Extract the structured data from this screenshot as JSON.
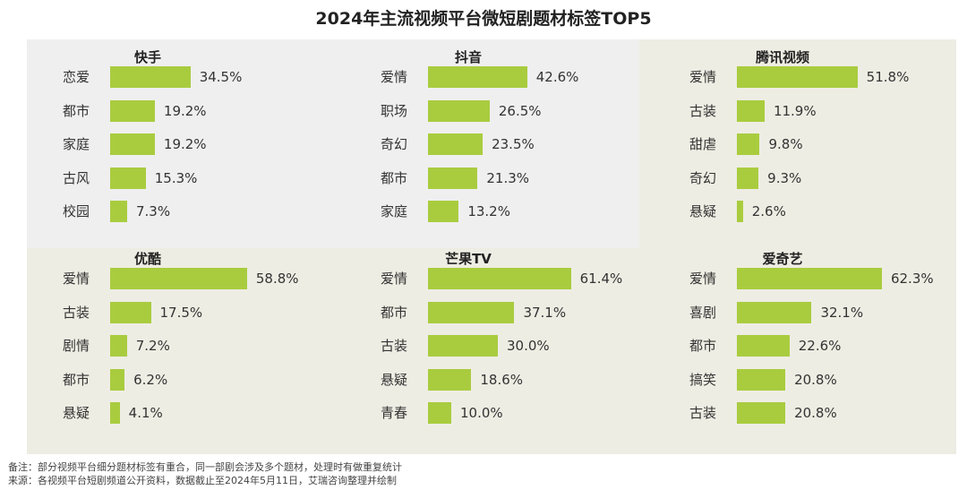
{
  "title": "2024年主流视频平台微短剧题材标签TOP5",
  "colors": {
    "bar": "#a9cc3f",
    "panel_gray": "#efefef",
    "panel_beige": "#eeede3"
  },
  "chart_data": [
    {
      "type": "bar",
      "title": "快手",
      "categories": [
        "恋爱",
        "都市",
        "家庭",
        "古风",
        "校园"
      ],
      "values": [
        34.5,
        19.2,
        19.2,
        15.3,
        7.3
      ],
      "labels": [
        "34.5%",
        "19.2%",
        "19.2%",
        "15.3%",
        "7.3%"
      ],
      "orientation": "horizontal"
    },
    {
      "type": "bar",
      "title": "抖音",
      "categories": [
        "爱情",
        "职场",
        "奇幻",
        "都市",
        "家庭"
      ],
      "values": [
        42.6,
        26.5,
        23.5,
        21.3,
        13.2
      ],
      "labels": [
        "42.6%",
        "26.5%",
        "23.5%",
        "21.3%",
        "13.2%"
      ],
      "orientation": "horizontal"
    },
    {
      "type": "bar",
      "title": "腾讯视频",
      "categories": [
        "爱情",
        "古装",
        "甜虐",
        "奇幻",
        "悬疑"
      ],
      "values": [
        51.8,
        11.9,
        9.8,
        9.3,
        2.6
      ],
      "labels": [
        "51.8%",
        "11.9%",
        "9.8%",
        "9.3%",
        "2.6%"
      ],
      "orientation": "horizontal"
    },
    {
      "type": "bar",
      "title": "优酷",
      "categories": [
        "爱情",
        "古装",
        "剧情",
        "都市",
        "悬疑"
      ],
      "values": [
        58.8,
        17.5,
        7.2,
        6.2,
        4.1
      ],
      "labels": [
        "58.8%",
        "17.5%",
        "7.2%",
        "6.2%",
        "4.1%"
      ],
      "orientation": "horizontal"
    },
    {
      "type": "bar",
      "title": "芒果TV",
      "categories": [
        "爱情",
        "都市",
        "古装",
        "悬疑",
        "青春"
      ],
      "values": [
        61.4,
        37.1,
        30.0,
        18.6,
        10.0
      ],
      "labels": [
        "61.4%",
        "37.1%",
        "30.0%",
        "18.6%",
        "10.0%"
      ],
      "orientation": "horizontal"
    },
    {
      "type": "bar",
      "title": "爱奇艺",
      "categories": [
        "爱情",
        "喜剧",
        "都市",
        "搞笑",
        "古装"
      ],
      "values": [
        62.3,
        32.1,
        22.6,
        20.8,
        20.8
      ],
      "labels": [
        "62.3%",
        "32.1%",
        "22.6%",
        "20.8%",
        "20.8%"
      ],
      "orientation": "horizontal"
    }
  ],
  "notes": {
    "remark": "备注：部分视频平台细分题材标签有重合，同一部剧会涉及多个题材，处理时有做重复统计",
    "source": "来源：各视频平台短剧频道公开资料，数据截止至2024年5月11日，艾瑞咨询整理并绘制"
  }
}
